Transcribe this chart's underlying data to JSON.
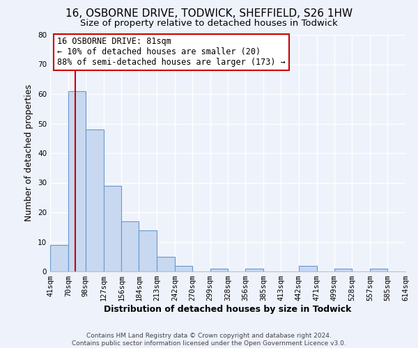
{
  "title": "16, OSBORNE DRIVE, TODWICK, SHEFFIELD, S26 1HW",
  "subtitle": "Size of property relative to detached houses in Todwick",
  "xlabel": "Distribution of detached houses by size in Todwick",
  "ylabel": "Number of detached properties",
  "bin_edges": [
    41,
    70,
    98,
    127,
    156,
    184,
    213,
    242,
    270,
    299,
    328,
    356,
    385,
    413,
    442,
    471,
    499,
    528,
    557,
    585,
    614
  ],
  "bin_counts": [
    9,
    61,
    48,
    29,
    17,
    14,
    5,
    2,
    0,
    1,
    0,
    1,
    0,
    0,
    2,
    0,
    1,
    0,
    1,
    0
  ],
  "bar_color": "#c8d8f0",
  "bar_edge_color": "#6699cc",
  "vline_x": 81,
  "vline_color": "#cc0000",
  "ylim": [
    0,
    80
  ],
  "yticks": [
    0,
    10,
    20,
    30,
    40,
    50,
    60,
    70,
    80
  ],
  "xtick_labels": [
    "41sqm",
    "70sqm",
    "98sqm",
    "127sqm",
    "156sqm",
    "184sqm",
    "213sqm",
    "242sqm",
    "270sqm",
    "299sqm",
    "328sqm",
    "356sqm",
    "385sqm",
    "413sqm",
    "442sqm",
    "471sqm",
    "499sqm",
    "528sqm",
    "557sqm",
    "585sqm",
    "614sqm"
  ],
  "annotation_title": "16 OSBORNE DRIVE: 81sqm",
  "annotation_line2": "← 10% of detached houses are smaller (20)",
  "annotation_line3": "88% of semi-detached houses are larger (173) →",
  "annotation_box_color": "#ffffff",
  "annotation_box_edge_color": "#cc0000",
  "footer_line1": "Contains HM Land Registry data © Crown copyright and database right 2024.",
  "footer_line2": "Contains public sector information licensed under the Open Government Licence v3.0.",
  "background_color": "#eef2fb",
  "grid_color": "#ffffff",
  "title_fontsize": 11,
  "subtitle_fontsize": 9.5,
  "axis_label_fontsize": 9,
  "tick_fontsize": 7.5,
  "footer_fontsize": 6.5,
  "annotation_fontsize": 8.5
}
